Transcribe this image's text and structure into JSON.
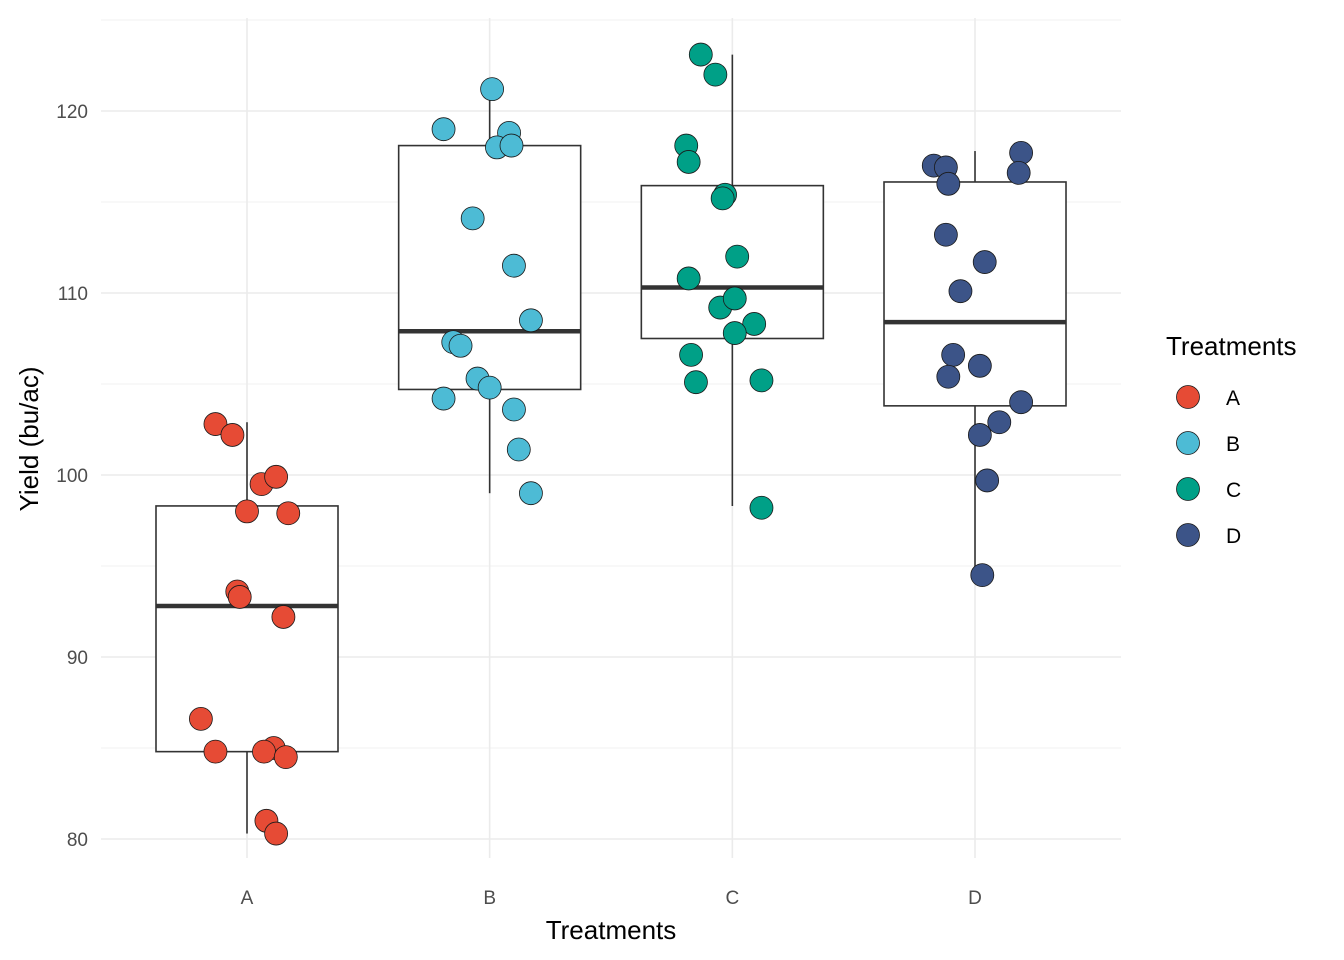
{
  "chart_data": {
    "type": "boxplot",
    "xlabel": "Treatments",
    "ylabel": "Yield (bu/ac)",
    "categories": [
      "A",
      "B",
      "C",
      "D"
    ],
    "ylim": [
      75,
      125
    ],
    "y_ticks": [
      80,
      90,
      100,
      110,
      120
    ],
    "grid": true,
    "legend": {
      "title": "Treatments",
      "position": "right",
      "entries": [
        "A",
        "B",
        "C",
        "D"
      ]
    },
    "colors": {
      "A": "#E64B35",
      "B": "#4DBBD5",
      "C": "#00A087",
      "D": "#3C5488"
    },
    "boxes": [
      {
        "category": "A",
        "whisker_low": 80.3,
        "q1": 84.8,
        "median": 92.8,
        "q3": 98.3,
        "whisker_high": 102.9
      },
      {
        "category": "B",
        "whisker_low": 99.0,
        "q1": 104.7,
        "median": 107.9,
        "q3": 118.1,
        "whisker_high": 121.2
      },
      {
        "category": "C",
        "whisker_low": 98.3,
        "q1": 107.5,
        "median": 110.3,
        "q3": 115.9,
        "whisker_high": 123.1
      },
      {
        "category": "D",
        "whisker_low": 94.5,
        "q1": 103.8,
        "median": 108.4,
        "q3": 116.1,
        "whisker_high": 117.8
      }
    ],
    "points": [
      {
        "category": "A",
        "jitter": -0.13,
        "y": 102.8
      },
      {
        "category": "A",
        "jitter": -0.06,
        "y": 102.2
      },
      {
        "category": "A",
        "jitter": 0.06,
        "y": 99.5
      },
      {
        "category": "A",
        "jitter": 0.12,
        "y": 99.9
      },
      {
        "category": "A",
        "jitter": 0.0,
        "y": 98.0
      },
      {
        "category": "A",
        "jitter": 0.17,
        "y": 97.9
      },
      {
        "category": "A",
        "jitter": -0.04,
        "y": 93.6
      },
      {
        "category": "A",
        "jitter": -0.03,
        "y": 93.3
      },
      {
        "category": "A",
        "jitter": 0.15,
        "y": 92.2
      },
      {
        "category": "A",
        "jitter": -0.19,
        "y": 86.6
      },
      {
        "category": "A",
        "jitter": -0.13,
        "y": 84.8
      },
      {
        "category": "A",
        "jitter": 0.11,
        "y": 85.0
      },
      {
        "category": "A",
        "jitter": 0.07,
        "y": 84.8
      },
      {
        "category": "A",
        "jitter": 0.16,
        "y": 84.5
      },
      {
        "category": "A",
        "jitter": 0.08,
        "y": 81.0
      },
      {
        "category": "A",
        "jitter": 0.12,
        "y": 80.3
      },
      {
        "category": "B",
        "jitter": 0.01,
        "y": 121.2
      },
      {
        "category": "B",
        "jitter": -0.19,
        "y": 119.0
      },
      {
        "category": "B",
        "jitter": 0.08,
        "y": 118.8
      },
      {
        "category": "B",
        "jitter": 0.03,
        "y": 118.0
      },
      {
        "category": "B",
        "jitter": 0.09,
        "y": 118.1
      },
      {
        "category": "B",
        "jitter": -0.07,
        "y": 114.1
      },
      {
        "category": "B",
        "jitter": 0.1,
        "y": 111.5
      },
      {
        "category": "B",
        "jitter": 0.17,
        "y": 108.5
      },
      {
        "category": "B",
        "jitter": -0.15,
        "y": 107.3
      },
      {
        "category": "B",
        "jitter": -0.12,
        "y": 107.1
      },
      {
        "category": "B",
        "jitter": -0.05,
        "y": 105.3
      },
      {
        "category": "B",
        "jitter": 0.0,
        "y": 104.8
      },
      {
        "category": "B",
        "jitter": -0.19,
        "y": 104.2
      },
      {
        "category": "B",
        "jitter": 0.1,
        "y": 103.6
      },
      {
        "category": "B",
        "jitter": 0.12,
        "y": 101.4
      },
      {
        "category": "B",
        "jitter": 0.17,
        "y": 99.0
      },
      {
        "category": "C",
        "jitter": -0.13,
        "y": 123.1
      },
      {
        "category": "C",
        "jitter": -0.07,
        "y": 122.0
      },
      {
        "category": "C",
        "jitter": -0.19,
        "y": 118.1
      },
      {
        "category": "C",
        "jitter": -0.18,
        "y": 117.2
      },
      {
        "category": "C",
        "jitter": -0.03,
        "y": 115.4
      },
      {
        "category": "C",
        "jitter": -0.04,
        "y": 115.2
      },
      {
        "category": "C",
        "jitter": 0.02,
        "y": 112.0
      },
      {
        "category": "C",
        "jitter": -0.18,
        "y": 110.8
      },
      {
        "category": "C",
        "jitter": -0.05,
        "y": 109.2
      },
      {
        "category": "C",
        "jitter": 0.01,
        "y": 109.7
      },
      {
        "category": "C",
        "jitter": 0.09,
        "y": 108.3
      },
      {
        "category": "C",
        "jitter": 0.01,
        "y": 107.8
      },
      {
        "category": "C",
        "jitter": -0.17,
        "y": 106.6
      },
      {
        "category": "C",
        "jitter": -0.15,
        "y": 105.1
      },
      {
        "category": "C",
        "jitter": 0.12,
        "y": 105.2
      },
      {
        "category": "C",
        "jitter": 0.12,
        "y": 98.2
      },
      {
        "category": "D",
        "jitter": -0.17,
        "y": 117.0
      },
      {
        "category": "D",
        "jitter": -0.12,
        "y": 116.9
      },
      {
        "category": "D",
        "jitter": 0.19,
        "y": 117.7
      },
      {
        "category": "D",
        "jitter": 0.18,
        "y": 116.6
      },
      {
        "category": "D",
        "jitter": -0.11,
        "y": 116.0
      },
      {
        "category": "D",
        "jitter": -0.12,
        "y": 113.2
      },
      {
        "category": "D",
        "jitter": 0.04,
        "y": 111.7
      },
      {
        "category": "D",
        "jitter": -0.06,
        "y": 110.1
      },
      {
        "category": "D",
        "jitter": -0.09,
        "y": 106.6
      },
      {
        "category": "D",
        "jitter": 0.02,
        "y": 106.0
      },
      {
        "category": "D",
        "jitter": -0.11,
        "y": 105.4
      },
      {
        "category": "D",
        "jitter": 0.19,
        "y": 104.0
      },
      {
        "category": "D",
        "jitter": 0.1,
        "y": 102.9
      },
      {
        "category": "D",
        "jitter": 0.02,
        "y": 102.2
      },
      {
        "category": "D",
        "jitter": 0.05,
        "y": 99.7
      },
      {
        "category": "D",
        "jitter": 0.03,
        "y": 94.5
      }
    ]
  }
}
